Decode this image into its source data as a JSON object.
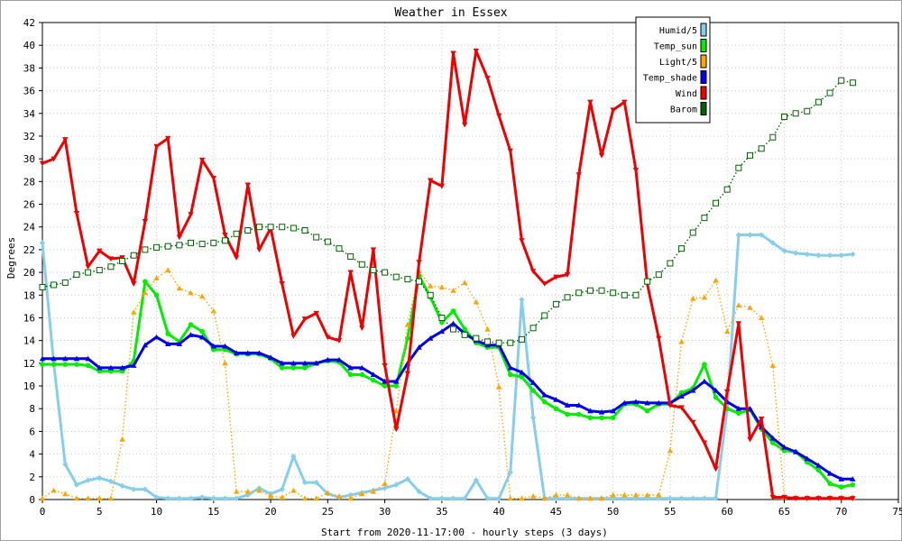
{
  "chart_data": {
    "type": "line",
    "title": "Weather in Essex",
    "xlabel": "Start from 2020-11-17:00 - hourly steps (3 days)",
    "ylabel": "Degrees",
    "xlim": [
      0,
      75
    ],
    "ylim": [
      0,
      42
    ],
    "x_ticks": [
      0,
      5,
      10,
      15,
      20,
      25,
      30,
      35,
      40,
      45,
      50,
      55,
      60,
      65,
      70,
      75
    ],
    "y_ticks": [
      0,
      2,
      4,
      6,
      8,
      10,
      12,
      14,
      16,
      18,
      20,
      22,
      24,
      26,
      28,
      30,
      32,
      34,
      36,
      38,
      40,
      42
    ],
    "grid": true,
    "legend_position": "top-right",
    "series": [
      {
        "name": "Humid/5",
        "color": "#87ceeb",
        "marker": "diamond",
        "line": "solid",
        "values": [
          22.6,
          11.9,
          3.1,
          1.3,
          1.7,
          1.9,
          1.6,
          1.2,
          0.9,
          0.9,
          0.2,
          0.1,
          0.1,
          0.1,
          0.2,
          0.1,
          0.1,
          0.1,
          0.4,
          1.0,
          0.5,
          0.9,
          3.8,
          1.5,
          1.5,
          0.5,
          0.2,
          0.4,
          0.6,
          0.8,
          1.0,
          1.3,
          1.8,
          0.7,
          0.1,
          0.1,
          0.1,
          0.1,
          1.7,
          0.1,
          0.1,
          2.4,
          17.6,
          7.2,
          0.1,
          0.1,
          0.1,
          0.1,
          0.1,
          0.1,
          0.1,
          0.1,
          0.1,
          0.1,
          0.1,
          0.1,
          0.1,
          0.1,
          0.1,
          0.1,
          8.0,
          23.3,
          23.3,
          23.3,
          22.6,
          21.9,
          21.7,
          21.6,
          21.5,
          21.5,
          21.5,
          21.6
        ]
      },
      {
        "name": "Temp_sun",
        "color": "#00ee00",
        "marker": "circle",
        "line": "solid",
        "values": [
          11.9,
          11.9,
          11.9,
          11.9,
          11.8,
          11.3,
          11.3,
          11.3,
          12.2,
          19.2,
          18.0,
          14.6,
          13.9,
          15.4,
          14.8,
          13.2,
          13.2,
          12.8,
          12.8,
          12.8,
          12.4,
          11.6,
          11.6,
          11.6,
          12.0,
          12.2,
          12.1,
          11.0,
          11.0,
          10.5,
          10.0,
          10.0,
          14.2,
          19.7,
          17.8,
          15.6,
          16.6,
          15.0,
          13.8,
          13.4,
          13.4,
          11.0,
          10.8,
          9.6,
          8.6,
          8.0,
          7.5,
          7.5,
          7.2,
          7.2,
          7.2,
          8.4,
          8.4,
          7.8,
          8.4,
          8.4,
          9.4,
          9.8,
          11.9,
          9.0,
          8.0,
          7.6,
          7.9,
          6.2,
          5.0,
          4.3,
          4.2,
          3.3,
          2.6,
          1.4,
          1.1,
          1.3
        ]
      },
      {
        "name": "Light/5",
        "color": "#ffa500",
        "marker": "triangle",
        "line": "dotted",
        "values": [
          0.1,
          0.8,
          0.5,
          0.1,
          0.1,
          0.1,
          0.1,
          5.3,
          16.5,
          18.2,
          19.5,
          20.2,
          18.6,
          18.2,
          17.9,
          16.6,
          12.0,
          0.7,
          0.7,
          0.8,
          0.3,
          0.2,
          0.8,
          0.1,
          0.1,
          0.6,
          0.3,
          0.1,
          0.5,
          0.7,
          1.4,
          7.8,
          15.4,
          20.1,
          18.8,
          18.7,
          18.4,
          19.1,
          17.4,
          15.0,
          9.9,
          0.1,
          0.1,
          0.3,
          0.1,
          0.4,
          0.4,
          0.1,
          0.1,
          0.1,
          0.4,
          0.4,
          0.4,
          0.4,
          0.4,
          4.3,
          13.9,
          17.7,
          17.8,
          19.3,
          14.8,
          17.1,
          16.9,
          16.0,
          11.8,
          0.2,
          0.2,
          0.2,
          0.2,
          0.2,
          0.2,
          0.2
        ]
      },
      {
        "name": "Temp_shade",
        "color": "#0000ee",
        "marker": "triangle",
        "line": "solid",
        "values": [
          12.4,
          12.4,
          12.4,
          12.4,
          12.4,
          11.6,
          11.6,
          11.6,
          11.8,
          13.6,
          14.3,
          13.7,
          13.7,
          14.5,
          14.3,
          13.5,
          13.5,
          12.9,
          12.9,
          12.9,
          12.5,
          12.0,
          12.0,
          12.0,
          12.0,
          12.3,
          12.3,
          11.6,
          11.6,
          11.0,
          10.4,
          10.4,
          12.0,
          13.4,
          14.2,
          14.8,
          15.5,
          14.6,
          14.0,
          13.6,
          13.6,
          11.6,
          11.2,
          10.3,
          9.2,
          8.8,
          8.3,
          8.3,
          7.8,
          7.7,
          7.8,
          8.5,
          8.6,
          8.5,
          8.5,
          8.5,
          9.1,
          9.6,
          10.4,
          9.6,
          8.6,
          8.0,
          8.0,
          6.4,
          5.4,
          4.6,
          4.2,
          3.6,
          3.0,
          2.3,
          1.8,
          1.8
        ]
      },
      {
        "name": "Wind",
        "color": "#ee0000",
        "marker": "down-triangle",
        "line": "solid",
        "values": [
          29.6,
          30.0,
          31.7,
          25.2,
          20.5,
          21.9,
          21.2,
          21.3,
          19.0,
          24.5,
          31.1,
          31.8,
          23.1,
          25.1,
          29.9,
          28.3,
          23.3,
          21.3,
          27.7,
          22.0,
          23.9,
          19.0,
          14.4,
          15.9,
          16.4,
          14.3,
          14.0,
          20.0,
          15.1,
          22.0,
          11.8,
          6.2,
          11.1,
          20.9,
          28.1,
          27.6,
          39.3,
          33.0,
          39.5,
          37.1,
          33.8,
          30.7,
          22.8,
          20.1,
          19.0,
          19.6,
          19.8,
          28.6,
          35.0,
          30.3,
          34.3,
          35.0,
          29.0,
          19.0,
          14.2,
          8.3,
          8.1,
          6.8,
          5.0,
          2.7,
          9.5,
          15.5,
          5.3,
          7.1,
          0.2,
          0.2,
          0.1,
          0.1,
          0.1,
          0.1,
          0.1,
          0.1
        ]
      },
      {
        "name": "Barom",
        "color": "#006400",
        "marker": "square",
        "line": "dotted",
        "values": [
          18.7,
          18.9,
          19.1,
          19.8,
          20.0,
          20.2,
          20.5,
          21.0,
          21.5,
          22.0,
          22.2,
          22.3,
          22.4,
          22.6,
          22.5,
          22.6,
          22.8,
          23.4,
          23.7,
          24.0,
          24.0,
          24.0,
          23.9,
          23.7,
          23.1,
          22.7,
          22.1,
          21.4,
          20.7,
          20.2,
          20.0,
          19.6,
          19.4,
          19.2,
          18.0,
          16.0,
          15.0,
          14.5,
          14.2,
          13.9,
          13.8,
          13.8,
          14.1,
          15.1,
          16.2,
          17.2,
          17.8,
          18.2,
          18.4,
          18.4,
          18.2,
          18.0,
          18.0,
          19.2,
          19.8,
          20.8,
          22.1,
          23.5,
          24.8,
          26.1,
          27.3,
          29.2,
          30.3,
          30.9,
          31.9,
          33.7,
          34.0,
          34.2,
          35.0,
          35.8,
          36.9,
          36.7
        ]
      }
    ]
  }
}
